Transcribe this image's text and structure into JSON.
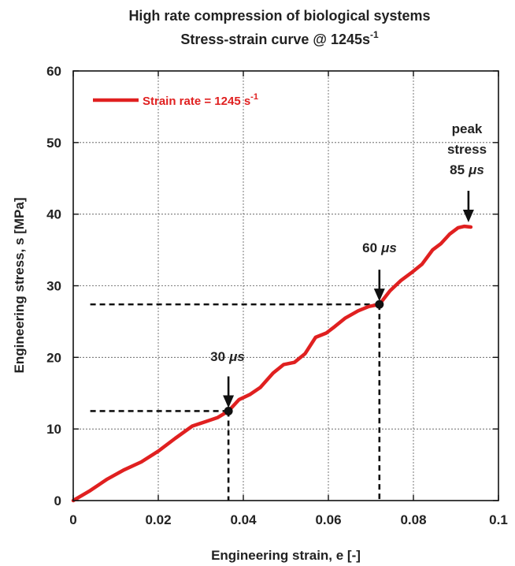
{
  "chart_data": {
    "type": "line",
    "title": "High rate compression of biological systems",
    "subtitle_main": "Stress-strain curve @ 1245s",
    "subtitle_sup": "-1",
    "xlabel": "Engineering strain, e [-]",
    "ylabel": "Engineering stress, s [MPa]",
    "xlim": [
      0,
      0.1
    ],
    "ylim": [
      0,
      60
    ],
    "xticks": [
      0,
      0.02,
      0.04,
      0.06,
      0.08,
      0.1
    ],
    "xtick_labels": [
      "0",
      "0.02",
      "0.04",
      "0.06",
      "0.08",
      "0.1"
    ],
    "yticks": [
      0,
      10,
      20,
      30,
      40,
      50,
      60
    ],
    "ytick_labels": [
      "0",
      "10",
      "20",
      "30",
      "40",
      "50",
      "60"
    ],
    "grid": true,
    "legend_position": "top-left",
    "series": [
      {
        "name": "Strain rate = 1245 s",
        "name_sup": "-1",
        "color": "#e02020",
        "x": [
          0,
          0.004,
          0.008,
          0.012,
          0.016,
          0.02,
          0.024,
          0.028,
          0.031,
          0.034,
          0.0365,
          0.039,
          0.0415,
          0.044,
          0.047,
          0.0495,
          0.052,
          0.0545,
          0.057,
          0.0595,
          0.0615,
          0.064,
          0.067,
          0.0695,
          0.072,
          0.0745,
          0.077,
          0.0795,
          0.082,
          0.0845,
          0.0865,
          0.0885,
          0.0905,
          0.092,
          0.0935
        ],
        "y": [
          0,
          1.4,
          3.0,
          4.3,
          5.4,
          6.9,
          8.7,
          10.4,
          11.0,
          11.6,
          12.5,
          14.1,
          14.8,
          15.8,
          17.8,
          19.0,
          19.3,
          20.5,
          22.8,
          23.4,
          24.3,
          25.5,
          26.5,
          27.1,
          27.4,
          29.3,
          30.7,
          31.8,
          33.0,
          35.0,
          35.9,
          37.2,
          38.1,
          38.3,
          38.2
        ]
      }
    ],
    "markers": [
      {
        "label_value": "30",
        "label_unit": "μs",
        "x": 0.0365,
        "y": 12.5
      },
      {
        "label_value": "60",
        "label_unit": "μs",
        "x": 0.072,
        "y": 27.4
      }
    ],
    "peak_annotation": {
      "line1": "peak",
      "line2": "stress",
      "line3_value": "85",
      "line3_unit": "μs",
      "x": 0.0935,
      "y": 38.2
    }
  }
}
